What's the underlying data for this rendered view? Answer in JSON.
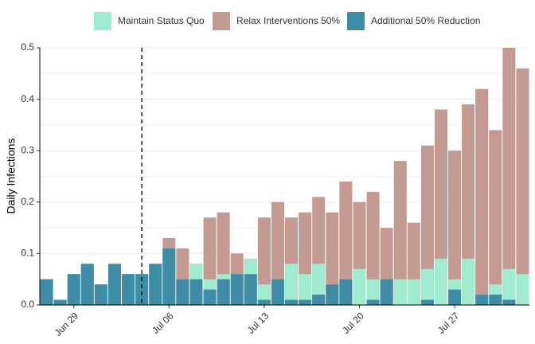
{
  "chart_data": {
    "type": "bar",
    "overlay": true,
    "y_label": "Daily Infections",
    "categories": [
      null,
      null,
      "Jun 29",
      null,
      null,
      null,
      null,
      null,
      null,
      "Jul 06",
      null,
      null,
      null,
      null,
      null,
      null,
      "Jul 13",
      null,
      null,
      null,
      null,
      null,
      null,
      "Jul 20",
      null,
      null,
      null,
      null,
      null,
      null,
      "Jul 27",
      null,
      null,
      null,
      null,
      null
    ],
    "series": [
      {
        "name": "Relax Interventions 50%",
        "color": "#c49b92",
        "values": [
          0.05,
          0.01,
          0.06,
          0.08,
          0.04,
          0.08,
          0.06,
          0.06,
          0.08,
          0.13,
          0.11,
          0.08,
          0.17,
          0.18,
          0.1,
          0.09,
          0.17,
          0.2,
          0.17,
          0.18,
          0.21,
          0.18,
          0.24,
          0.2,
          0.22,
          0.15,
          0.28,
          0.16,
          0.31,
          0.38,
          0.3,
          0.39,
          0.42,
          0.34,
          0.5,
          0.46
        ]
      },
      {
        "name": "Maintain Status Quo",
        "color": "#a1ebd0",
        "values": [
          0.05,
          0.01,
          0.06,
          0.08,
          0.04,
          0.08,
          0.06,
          0.06,
          0.08,
          0.11,
          0.05,
          0.08,
          0.05,
          0.06,
          0.06,
          0.09,
          0.04,
          0.05,
          0.08,
          0.06,
          0.08,
          0.04,
          0.05,
          0.07,
          0.05,
          0.05,
          0.05,
          0.05,
          0.07,
          0.09,
          0.05,
          0.09,
          0.02,
          0.04,
          0.07,
          0.06
        ]
      },
      {
        "name": "Additional 50% Reduction",
        "color": "#3f8ca6",
        "values": [
          0.05,
          0.01,
          0.06,
          0.08,
          0.04,
          0.08,
          0.06,
          0.06,
          0.08,
          0.11,
          0.05,
          0.05,
          0.03,
          0.05,
          0.06,
          0.06,
          0.01,
          0.05,
          0.01,
          0.01,
          0.02,
          0.04,
          0.05,
          0,
          0.01,
          0.05,
          0,
          0,
          0.01,
          0,
          0.03,
          0,
          0.02,
          0.02,
          0.01,
          0
        ]
      }
    ],
    "ylim": [
      0,
      0.5
    ],
    "yticks": [
      {
        "value": 0,
        "label": "0.0"
      },
      0.1,
      0.2,
      0.3,
      0.4,
      0.5
    ],
    "grid": true,
    "minor_grid": true,
    "legend": "top",
    "reference_line": {
      "category_index": 7,
      "style": "dashed"
    }
  }
}
